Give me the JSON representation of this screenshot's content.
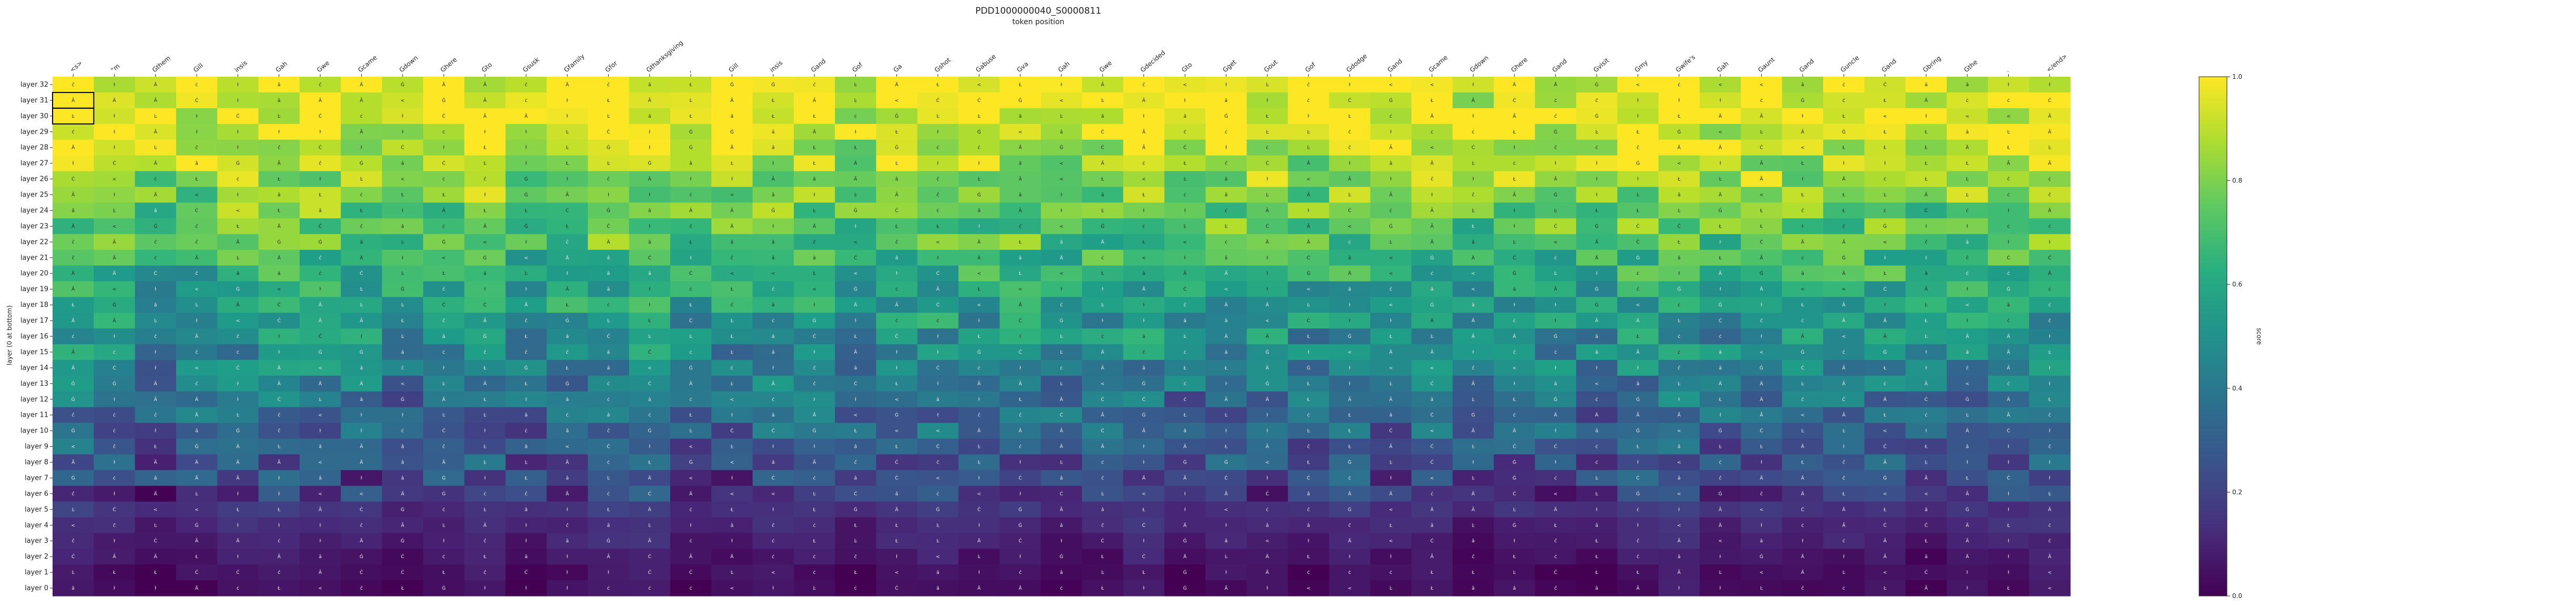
{
  "chart_data": {
    "type": "heatmap",
    "title": "PDD1000000040_S0000811",
    "xlabel": "token position",
    "ylabel": "layer (0 at bottom)",
    "colorbar_label": "score",
    "colormap": "viridis",
    "vmin": 0,
    "vmax": 1,
    "colorbar_ticks": [
      "0.0",
      "0.2",
      "0.4",
      "0.6",
      "0.8",
      "1.0"
    ],
    "x_tokens": [
      "<s>",
      "\"m",
      "Gthem",
      "Gill",
      "insis",
      "Gah",
      "Gwe",
      "Gcame",
      "Gdown",
      "Ghere",
      "Gto",
      "Gsusk",
      "Gfamily",
      "Gfor",
      "Gthanksgiving",
      ",",
      "Gill",
      "insis",
      "Gand",
      "Gof",
      "Ga",
      "Gshot",
      "Gabuse",
      "Gva",
      "Gah",
      "Gwe",
      "Gdecided",
      "Gto",
      "Gget",
      "Gout",
      "Gof",
      "Gdodge",
      "Gand",
      "Gcame",
      "Gdown",
      "Ghere",
      "Gand",
      "Gvisit",
      "Gmy",
      "Gwife's",
      "Gah",
      "Gaunt",
      "Gand",
      "Guncle",
      "Gand",
      "Gbring",
      "Gthe",
      ".",
      "</end>"
    ],
    "y_layers": [
      "layer 32",
      "layer 31",
      "layer 30",
      "layer 29",
      "layer 28",
      "layer 27",
      "layer 26",
      "layer 25",
      "layer 24",
      "layer 23",
      "layer 22",
      "layer 21",
      "layer 20",
      "layer 19",
      "layer 18",
      "layer 17",
      "layer 16",
      "layer 15",
      "layer 14",
      "layer 13",
      "layer 12",
      "layer 11",
      "layer 10",
      "layer 9",
      "layer 8",
      "layer 7",
      "layer 6",
      "layer 5",
      "layer 4",
      "layer 3",
      "layer 2",
      "layer 1",
      "layer 0"
    ],
    "band_profile": [
      0.98,
      0.97,
      0.96,
      0.94,
      0.9,
      0.86,
      0.82,
      0.79,
      0.76,
      0.73,
      0.7,
      0.65,
      0.61,
      0.57,
      0.54,
      0.51,
      0.48,
      0.45,
      0.42,
      0.39,
      0.36,
      0.33,
      0.3,
      0.27,
      0.24,
      0.2,
      0.16,
      0.13,
      0.1,
      0.08,
      0.05,
      0.03,
      0.02
    ],
    "token_bias": [
      0.05,
      0.02,
      -0.03,
      0.0,
      0.02,
      0.04,
      0.03,
      0.01,
      -0.02,
      0.0,
      0.03,
      -0.01,
      0.02,
      0.06,
      0.05,
      -0.02,
      0.0,
      0.02,
      0.01,
      -0.03,
      0.02,
      0.04,
      0.01,
      0.03,
      -0.01,
      0.0,
      0.04,
      -0.02,
      0.01,
      0.02,
      -0.01,
      0.03,
      0.0,
      0.02,
      -0.03,
      0.01,
      0.0,
      -0.02,
      0.03,
      0.05,
      -0.01,
      0.02,
      0.0,
      0.01,
      0.03,
      -0.02,
      0.01,
      0.02,
      0.04
    ],
    "cell_symbols": [
      "Ä",
      "ĉ",
      "Ġ",
      "ċ",
      "<",
      "Ã",
      "Ċ",
      "â",
      "ł",
      "Ł",
      "ŀ",
      "Ŀ"
    ],
    "highlight_cells": [
      {
        "layer": "layer 31",
        "token_index": 0
      },
      {
        "layer": "layer 30",
        "token_index": 0
      }
    ]
  }
}
